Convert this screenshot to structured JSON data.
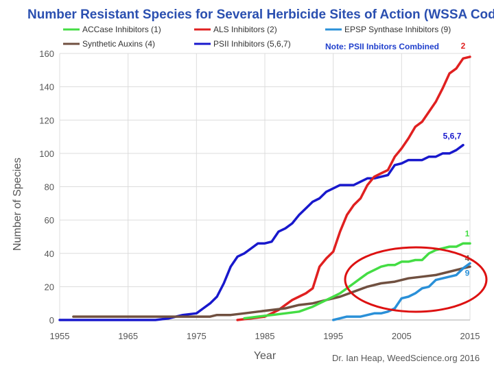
{
  "chart_data": {
    "type": "line",
    "title": "Number Resistant Species for Several Herbicide Sites of Action (WSSA Codes)",
    "note": "Note: PSII Inbitors Combined",
    "xlabel": "Year",
    "ylabel": "Number of Species",
    "xlim": [
      1955,
      2015
    ],
    "ylim": [
      0,
      160
    ],
    "x_ticks": [
      "1955",
      "1965",
      "1975",
      "1985",
      "1995",
      "2005",
      "2015"
    ],
    "y_ticks": [
      "0",
      "20",
      "40",
      "60",
      "80",
      "100",
      "120",
      "140",
      "160"
    ],
    "credit": "Dr. Ian Heap, WeedScience.org 2016",
    "legend": [
      {
        "label": "ACCase Inhibitors (1)",
        "color": "#44dd44"
      },
      {
        "label": "ALS Inhibitors (2)",
        "color": "#e02020"
      },
      {
        "label": "EPSP Synthase Inhibitors (9)",
        "color": "#2a90d8"
      },
      {
        "label": "Synthetic Auxins (4)",
        "color": "#705040"
      },
      {
        "label": "PSII Inhibitors (5,6,7)",
        "color": "#1818cc"
      }
    ],
    "series": [
      {
        "name": "PSII Inhibitors (5,6,7)",
        "end_label": "5,6,7",
        "color": "#1818cc",
        "x": [
          1955,
          1969,
          1971,
          1972,
          1973,
          1975,
          1976,
          1977,
          1978,
          1979,
          1980,
          1981,
          1982,
          1983,
          1984,
          1985,
          1986,
          1987,
          1988,
          1989,
          1990,
          1991,
          1992,
          1993,
          1994,
          1995,
          1996,
          1997,
          1998,
          1999,
          2000,
          2001,
          2002,
          2003,
          2004,
          2005,
          2006,
          2007,
          2008,
          2009,
          2010,
          2011,
          2012,
          2013,
          2014
        ],
        "y": [
          0,
          0,
          1,
          2,
          3,
          4,
          7,
          10,
          14,
          22,
          32,
          38,
          40,
          43,
          46,
          46,
          47,
          53,
          55,
          58,
          63,
          67,
          71,
          73,
          77,
          79,
          81,
          81,
          81,
          83,
          85,
          85,
          86,
          87,
          93,
          94,
          96,
          96,
          96,
          98,
          98,
          100,
          100,
          102,
          105
        ]
      },
      {
        "name": "ALS Inhibitors (2)",
        "end_label": "2",
        "color": "#e02020",
        "x": [
          1981,
          1983,
          1985,
          1986,
          1987,
          1988,
          1989,
          1990,
          1991,
          1992,
          1993,
          1994,
          1995,
          1996,
          1997,
          1998,
          1999,
          2000,
          2001,
          2002,
          2003,
          2004,
          2005,
          2006,
          2007,
          2008,
          2009,
          2010,
          2011,
          2012,
          2013,
          2014,
          2015
        ],
        "y": [
          0,
          1,
          2,
          4,
          6,
          9,
          12,
          14,
          16,
          19,
          32,
          37,
          41,
          53,
          63,
          69,
          73,
          81,
          86,
          88,
          90,
          98,
          103,
          109,
          116,
          119,
          125,
          131,
          139,
          148,
          151,
          157,
          158
        ]
      },
      {
        "name": "Synthetic Auxins (4)",
        "end_label": "4",
        "color": "#705040",
        "x": [
          1957,
          1977,
          1978,
          1980,
          1982,
          1984,
          1986,
          1988,
          1990,
          1992,
          1994,
          1996,
          1998,
          2000,
          2002,
          2004,
          2006,
          2008,
          2010,
          2012,
          2014,
          2015
        ],
        "y": [
          2,
          2,
          3,
          3,
          4,
          5,
          6,
          7,
          9,
          10,
          12,
          14,
          17,
          20,
          22,
          23,
          25,
          26,
          27,
          29,
          31,
          32
        ]
      },
      {
        "name": "ACCase Inhibitors (1)",
        "end_label": "1",
        "color": "#44dd44",
        "x": [
          1982,
          1984,
          1986,
          1988,
          1990,
          1992,
          1993,
          1994,
          1995,
          1996,
          1997,
          1998,
          1999,
          2000,
          2001,
          2002,
          2003,
          2004,
          2005,
          2006,
          2007,
          2008,
          2009,
          2010,
          2011,
          2012,
          2013,
          2014,
          2015
        ],
        "y": [
          1,
          2,
          3,
          4,
          5,
          8,
          10,
          12,
          14,
          16,
          19,
          22,
          25,
          28,
          30,
          32,
          33,
          33,
          35,
          35,
          36,
          36,
          40,
          42,
          43,
          44,
          44,
          46,
          46
        ]
      },
      {
        "name": "EPSP Synthase Inhibitors (9)",
        "end_label": "9",
        "color": "#2a90d8",
        "x": [
          1995,
          1996,
          1997,
          1998,
          1999,
          2000,
          2001,
          2002,
          2003,
          2004,
          2005,
          2006,
          2007,
          2008,
          2009,
          2010,
          2011,
          2012,
          2013,
          2014,
          2015
        ],
        "y": [
          0,
          1,
          2,
          2,
          2,
          3,
          4,
          4,
          5,
          7,
          13,
          14,
          16,
          19,
          20,
          24,
          25,
          26,
          27,
          31,
          34
        ]
      }
    ]
  }
}
